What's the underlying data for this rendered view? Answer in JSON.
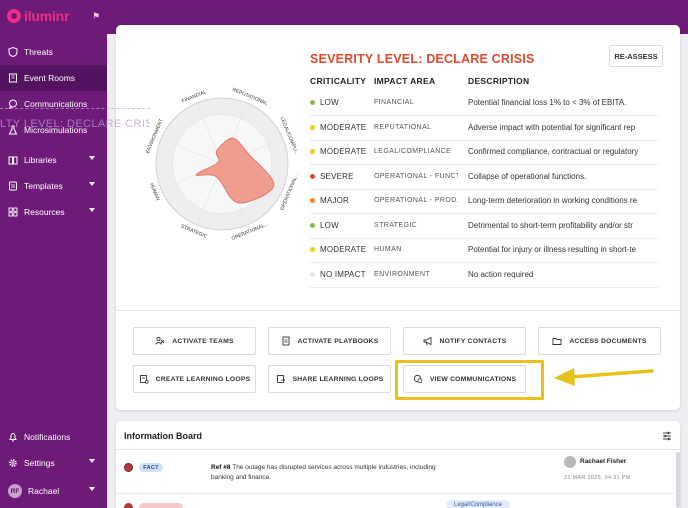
{
  "app": {
    "logo_text": "iluminr"
  },
  "sidebar": {
    "items": [
      {
        "label": "Threats",
        "icon": "shield-icon"
      },
      {
        "label": "Event Rooms",
        "icon": "building-icon"
      },
      {
        "label": "Communications",
        "icon": "chat-icon"
      },
      {
        "label": "Microsimulations",
        "icon": "flask-icon"
      },
      {
        "label": "Libraries",
        "icon": "book-icon"
      },
      {
        "label": "Templates",
        "icon": "template-icon"
      },
      {
        "label": "Resources",
        "icon": "grid-icon"
      }
    ],
    "bottom": [
      {
        "label": "Notifications",
        "icon": "bell-icon"
      },
      {
        "label": "Settings",
        "icon": "gear-icon"
      }
    ],
    "user": {
      "initials": "RF",
      "name": "Rachael"
    },
    "ghost_text": "LTY LEVEL: DECLARE CRISIS"
  },
  "severity": {
    "title": "SEVERITY LEVEL: DECLARE CRISIS",
    "reassess_label": "RE-ASSESS",
    "headers": {
      "criticality": "CRITICALITY",
      "impact_area": "IMPACT AREA",
      "description": "DESCRIPTION"
    },
    "rows": [
      {
        "criticality": "LOW",
        "area": "FINANCIAL",
        "description": "Potential financial loss 1% to < 3% of EBITA.",
        "color": "#7cc242"
      },
      {
        "criticality": "MODERATE",
        "area": "REPUTATIONAL",
        "description": "Adverse impact with potential for significant rep",
        "color": "#e8d21a"
      },
      {
        "criticality": "MODERATE",
        "area": "LEGAL/COMPLIANCE",
        "description": "Confirmed compliance, contractual or regulatory",
        "color": "#e8d21a"
      },
      {
        "criticality": "SEVERE",
        "area": "OPERATIONAL - FUNCT...",
        "description": "Collapse of operational functions.",
        "color": "#e04a2d"
      },
      {
        "criticality": "MAJOR",
        "area": "OPERATIONAL - PROD...",
        "description": "Long-term deterioration in working conditions re",
        "color": "#f08a1c"
      },
      {
        "criticality": "LOW",
        "area": "STRATEGIC",
        "description": "Detrimental to short-term profitability and/or str",
        "color": "#7cc242"
      },
      {
        "criticality": "MODERATE",
        "area": "HUMAN",
        "description": "Potential for injury or illness resulting in short-te",
        "color": "#e8d21a"
      },
      {
        "criticality": "NO IMPACT",
        "area": "ENVIRONMENT",
        "description": "No action required",
        "color": "#e6e6e6"
      }
    ]
  },
  "radar": {
    "axes": [
      "FINANCIAL",
      "REPUTATIONAL",
      "LEGAL/COMPLI...",
      "OPERATIONAL...",
      "OPERATIONAL...",
      "STRATEGIC",
      "HUMAN",
      "ENVIRONMENT"
    ],
    "values": [
      1,
      2,
      2,
      4,
      3,
      1,
      2,
      0
    ],
    "max": 4,
    "fill_color": "#ef8d7e"
  },
  "actions": [
    {
      "label": "ACTIVATE TEAMS",
      "icon": "team-icon"
    },
    {
      "label": "ACTIVATE PLAYBOOKS",
      "icon": "playbook-icon"
    },
    {
      "label": "NOTIFY CONTACTS",
      "icon": "megaphone-icon"
    },
    {
      "label": "ACCESS DOCUMENTS",
      "icon": "folder-icon"
    },
    {
      "label": "CREATE LEARNING LOOPS",
      "icon": "loop-icon"
    },
    {
      "label": "SHARE LEARNING LOOPS",
      "icon": "share-icon"
    },
    {
      "label": "VIEW COMMUNICATIONS",
      "icon": "chat-icon"
    }
  ],
  "board": {
    "title": "Information Board",
    "entries": [
      {
        "tag": "FACT",
        "ref": "Ref #8",
        "text": "The outage has disrupted services across multiple industries, including banking and finance.",
        "author": "Rachael Fisher",
        "date": "21 MAR 2025, 04:31 PM"
      }
    ],
    "next_tag": "Legal/Compliance"
  },
  "annotation_color": "#e8c21a"
}
